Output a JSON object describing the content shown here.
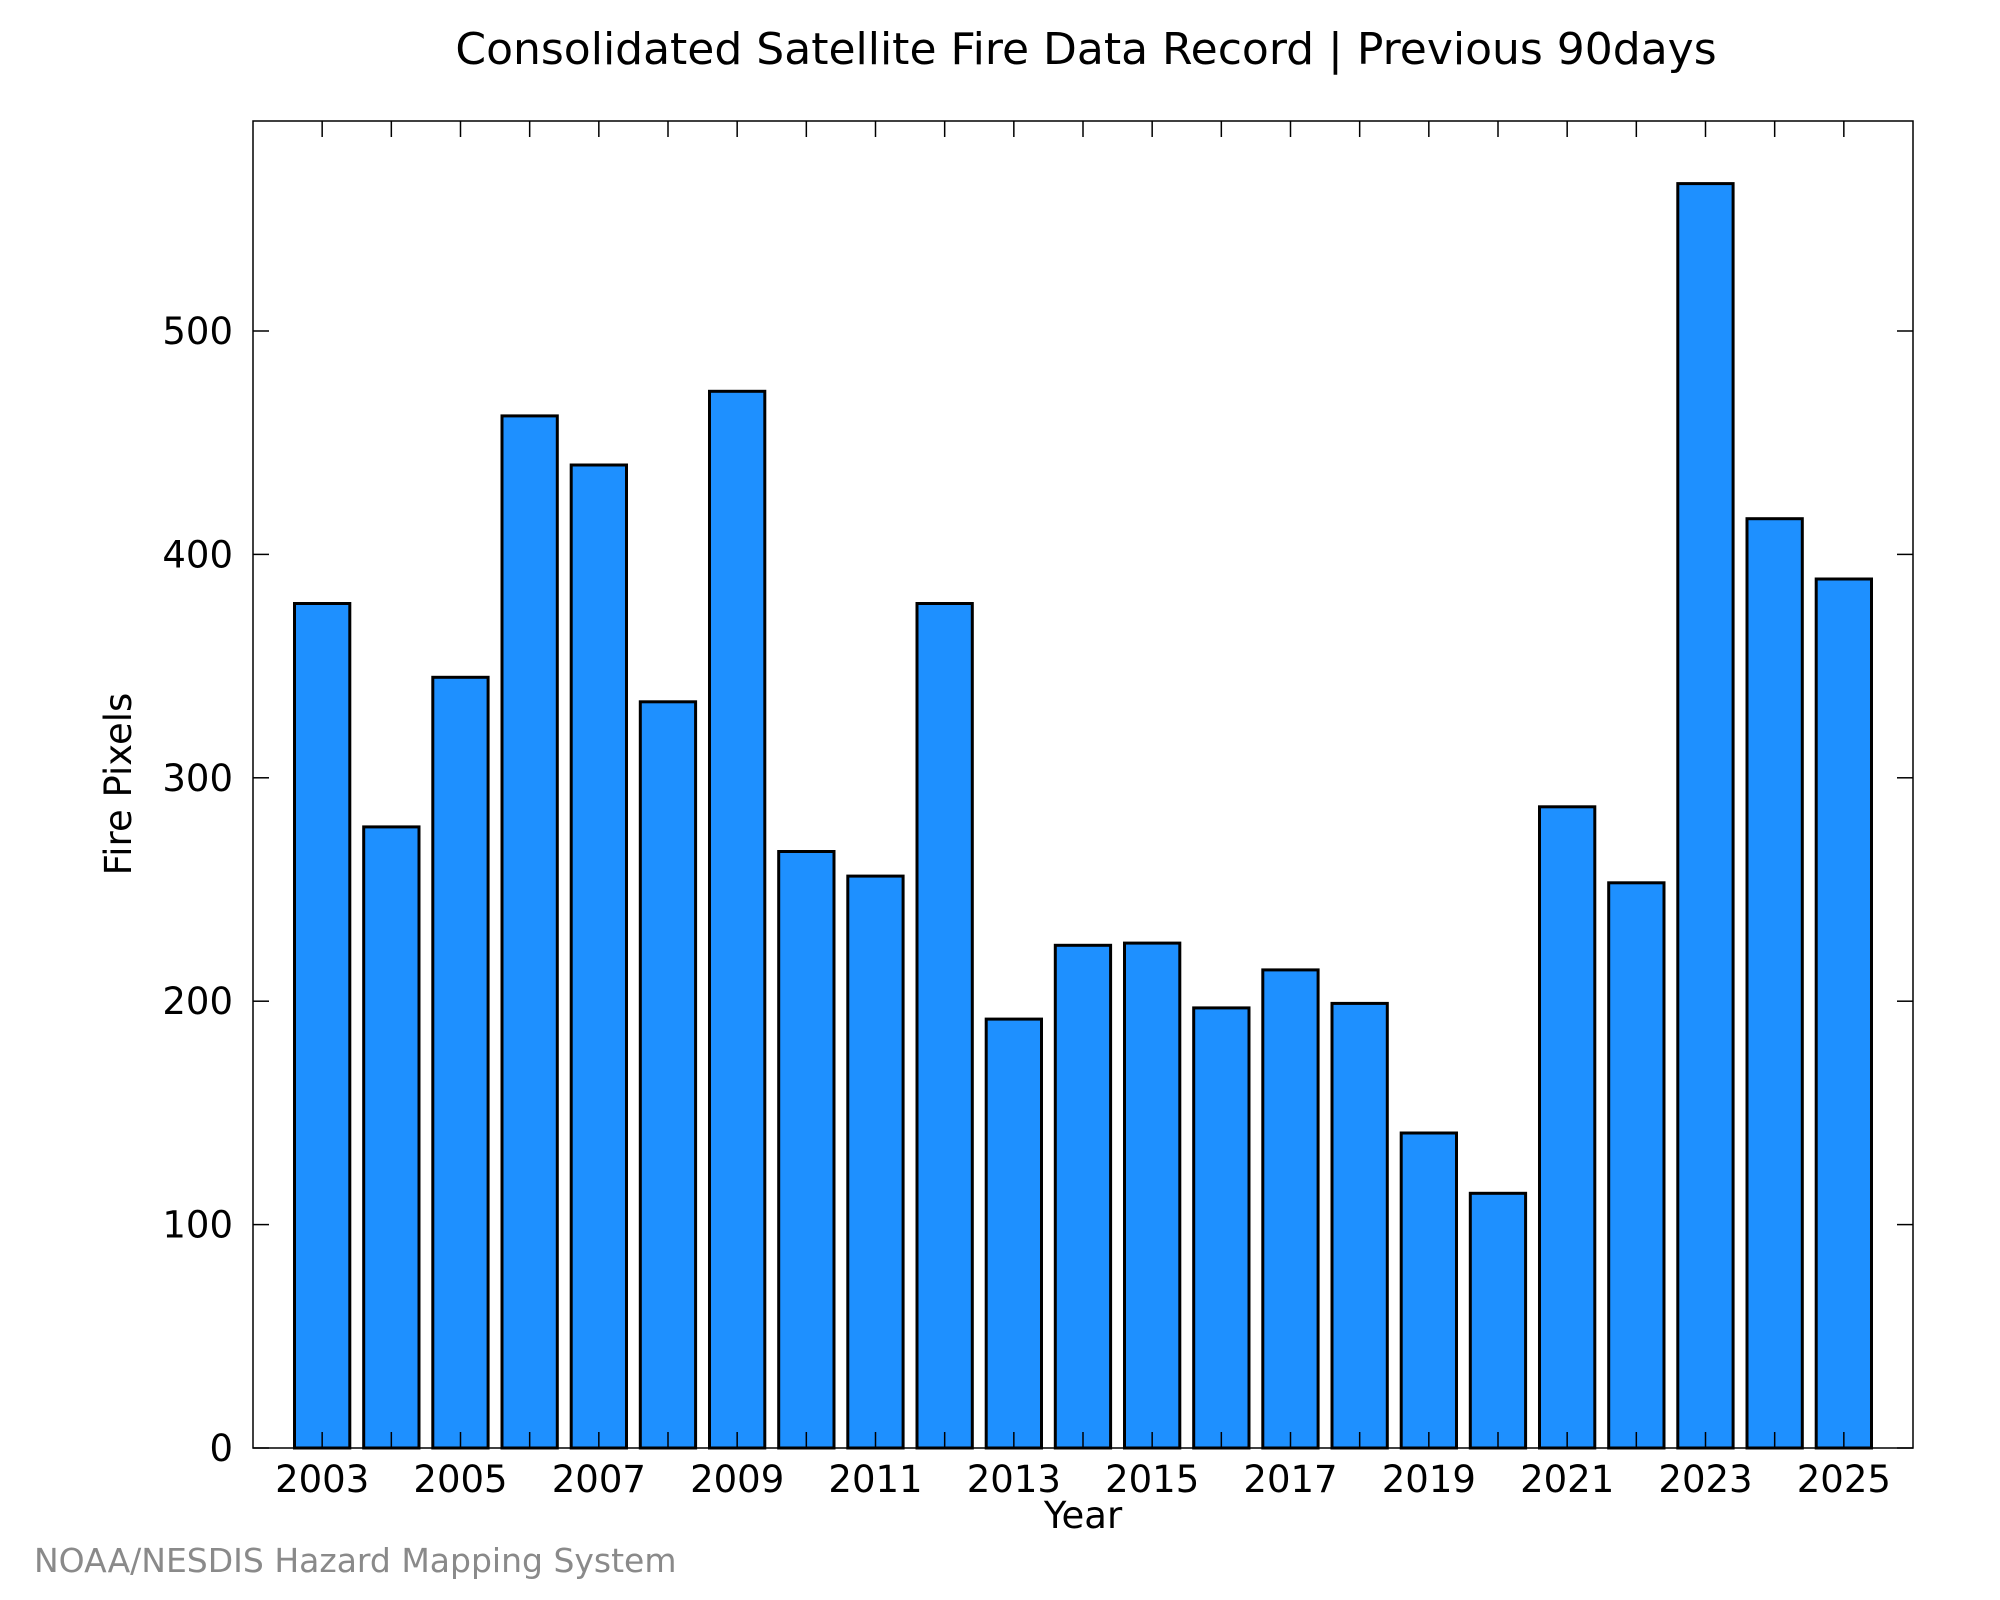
{
  "chart_data": {
    "type": "bar",
    "title": "Consolidated Satellite Fire Data Record | Previous 90days",
    "xlabel": "Year",
    "ylabel": "Fire Pixels",
    "categories": [
      "2003",
      "2004",
      "2005",
      "2006",
      "2007",
      "2008",
      "2009",
      "2010",
      "2011",
      "2012",
      "2013",
      "2014",
      "2015",
      "2016",
      "2017",
      "2018",
      "2019",
      "2020",
      "2021",
      "2022",
      "2023",
      "2024",
      "2025"
    ],
    "values": [
      378,
      278,
      345,
      462,
      440,
      334,
      473,
      267,
      256,
      378,
      192,
      225,
      226,
      197,
      214,
      199,
      141,
      114,
      287,
      253,
      566,
      416,
      389
    ],
    "x_tick_labels": [
      "2003",
      "2005",
      "2007",
      "2009",
      "2011",
      "2013",
      "2015",
      "2017",
      "2019",
      "2021",
      "2023",
      "2025"
    ],
    "y_tick_labels": [
      "0",
      "100",
      "200",
      "300",
      "400",
      "500"
    ],
    "ylim": [
      0,
      594
    ],
    "grid": false,
    "bar_color": "#1e90ff",
    "bar_edge_color": "#000000"
  },
  "credit": "NOAA/NESDIS Hazard Mapping System"
}
